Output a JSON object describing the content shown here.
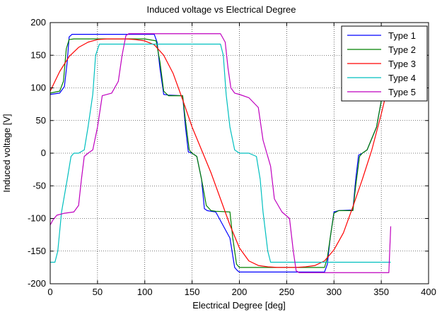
{
  "chart_data": {
    "type": "line",
    "title": "Induced voltage vs Electrical Degree",
    "xlabel": "Electrical Degree [deg]",
    "ylabel": "Induced voltage [V]",
    "xlim": [
      0,
      400
    ],
    "ylim": [
      -200,
      200
    ],
    "xticks": [
      0,
      50,
      100,
      150,
      200,
      250,
      300,
      350,
      400
    ],
    "yticks": [
      -200,
      -150,
      -100,
      -50,
      0,
      50,
      100,
      150,
      200
    ],
    "grid": true,
    "legend_position": "top-right",
    "series": [
      {
        "name": "Type 1",
        "color": "#0000ff",
        "x": [
          0,
          10,
          15,
          18,
          20,
          23,
          30,
          60,
          90,
          110,
          113,
          116,
          120,
          125,
          140,
          143,
          146,
          150,
          155,
          160,
          163,
          166,
          170,
          175,
          190,
          195,
          198,
          200,
          210,
          250,
          290,
          293,
          296,
          300,
          305,
          320,
          323,
          326,
          330,
          335,
          345,
          350,
          355,
          360
        ],
        "y": [
          90,
          92,
          102,
          140,
          178,
          182,
          182,
          182,
          182,
          182,
          170,
          130,
          90,
          89,
          88,
          40,
          2,
          0,
          -5,
          -40,
          -85,
          -88,
          -89,
          -90,
          -130,
          -175,
          -180,
          -182,
          -182,
          -182,
          -182,
          -170,
          -130,
          -90,
          -88,
          -87,
          -40,
          -3,
          0,
          5,
          40,
          80,
          150,
          180
        ]
      },
      {
        "name": "Type 2",
        "color": "#008000",
        "x": [
          0,
          10,
          14,
          17,
          20,
          25,
          60,
          100,
          112,
          116,
          120,
          125,
          140,
          143,
          147,
          150,
          155,
          160,
          165,
          170,
          175,
          190,
          193,
          197,
          200,
          210,
          250,
          290,
          293,
          297,
          300,
          305,
          320,
          323,
          327,
          330,
          335,
          345,
          350,
          355,
          360
        ],
        "y": [
          92,
          95,
          110,
          160,
          174,
          175,
          175,
          175,
          172,
          140,
          95,
          88,
          88,
          50,
          5,
          0,
          -5,
          -40,
          -80,
          -88,
          -89,
          -90,
          -130,
          -170,
          -175,
          -175,
          -175,
          -175,
          -160,
          -120,
          -92,
          -88,
          -88,
          -50,
          -5,
          0,
          5,
          40,
          80,
          150,
          175
        ]
      },
      {
        "name": "Type 3",
        "color": "#ff0000",
        "x": [
          0,
          10,
          20,
          30,
          40,
          50,
          60,
          70,
          80,
          90,
          100,
          110,
          120,
          130,
          140,
          150,
          160,
          170,
          180,
          190,
          200,
          210,
          220,
          230,
          240,
          250,
          260,
          270,
          280,
          290,
          300,
          310,
          320,
          330,
          340,
          350,
          360
        ],
        "y": [
          95,
          125,
          148,
          162,
          170,
          174,
          175,
          175,
          175,
          174,
          172,
          166,
          150,
          122,
          82,
          40,
          5,
          -30,
          -70,
          -110,
          -145,
          -165,
          -172,
          -174,
          -175,
          -175,
          -175,
          -174,
          -172,
          -165,
          -148,
          -122,
          -82,
          -40,
          5,
          60,
          120
        ]
      },
      {
        "name": "Type 4",
        "color": "#00bfbf",
        "x": [
          0,
          5,
          8,
          12,
          18,
          22,
          25,
          30,
          36,
          40,
          45,
          48,
          52,
          55,
          90,
          130,
          170,
          180,
          183,
          186,
          190,
          195,
          200,
          210,
          218,
          222,
          225,
          230,
          233,
          240,
          280,
          320,
          340,
          350,
          355,
          360
        ],
        "y": [
          -167,
          -167,
          -150,
          -90,
          -40,
          -5,
          0,
          0,
          5,
          40,
          90,
          150,
          167,
          167,
          167,
          167,
          167,
          167,
          150,
          90,
          40,
          5,
          0,
          0,
          -5,
          -40,
          -90,
          -150,
          -167,
          -167,
          -167,
          -167,
          -167,
          -167,
          -167,
          -167
        ]
      },
      {
        "name": "Type 5",
        "color": "#bf00bf",
        "x": [
          0,
          3,
          7,
          15,
          25,
          30,
          33,
          36,
          40,
          45,
          50,
          55,
          65,
          72,
          76,
          80,
          83,
          90,
          120,
          160,
          180,
          185,
          188,
          191,
          195,
          200,
          210,
          220,
          225,
          229,
          233,
          237,
          245,
          253,
          257,
          260,
          263,
          270,
          300,
          350,
          358,
          360
        ],
        "y": [
          -110,
          -102,
          -95,
          -92,
          -90,
          -80,
          -40,
          -5,
          0,
          5,
          40,
          88,
          92,
          110,
          150,
          180,
          183,
          183,
          183,
          183,
          183,
          170,
          130,
          100,
          92,
          90,
          85,
          70,
          20,
          0,
          -20,
          -70,
          -90,
          -100,
          -150,
          -180,
          -183,
          -183,
          -183,
          -183,
          -183,
          -112
        ]
      }
    ]
  }
}
